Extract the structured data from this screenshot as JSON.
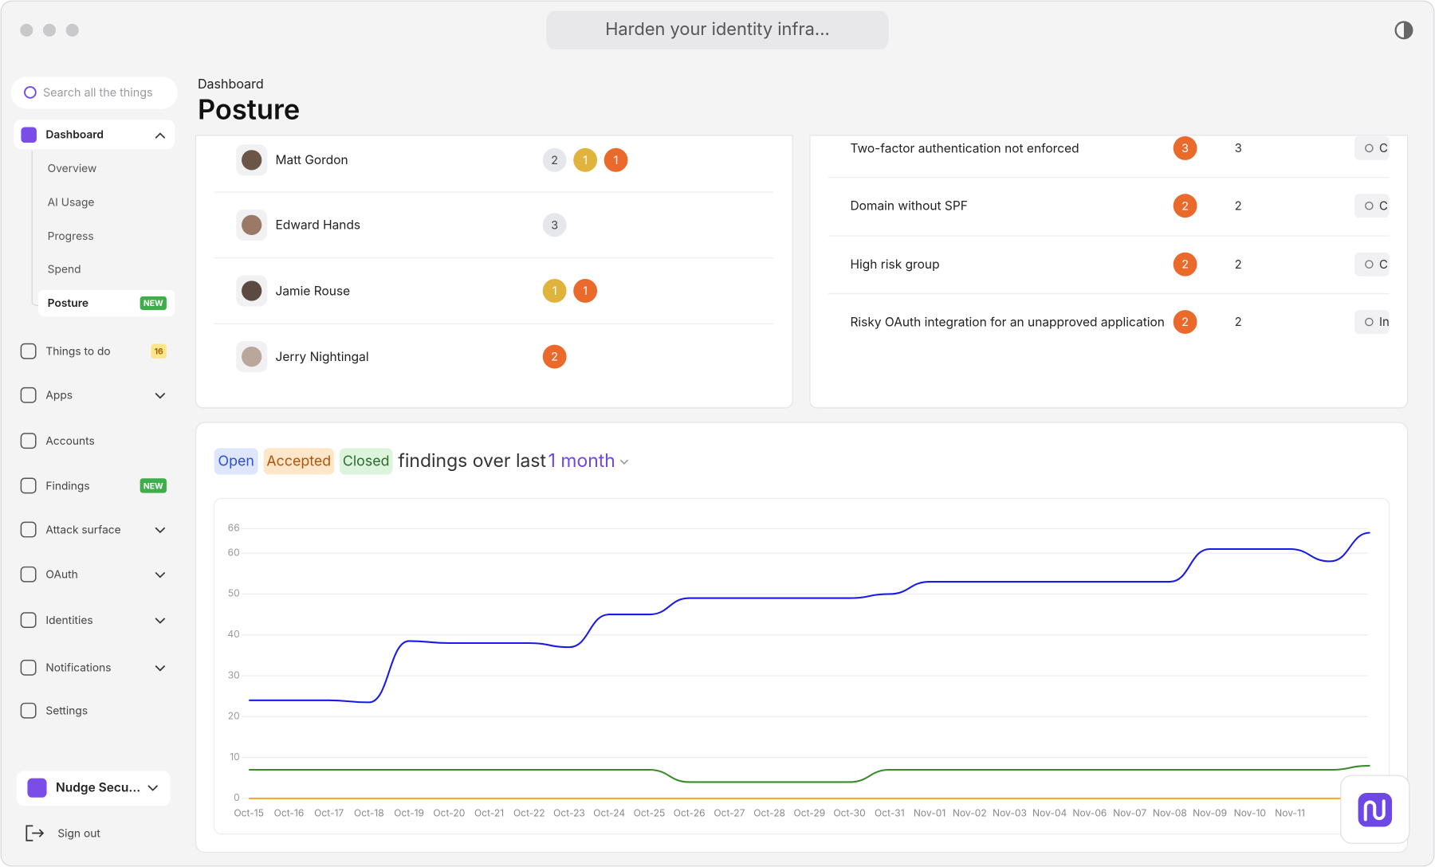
{
  "window": {
    "title": "Harden your identity infra..."
  },
  "sidebar": {
    "search": "Search all the things",
    "dashboard": {
      "label": "Dashboard",
      "items": [
        {
          "label": "Overview"
        },
        {
          "label": "AI Usage"
        },
        {
          "label": "Progress"
        },
        {
          "label": "Spend"
        },
        {
          "label": "Posture",
          "badge": "NEW"
        }
      ]
    },
    "nav": [
      {
        "label": "Things to do",
        "badge": "16"
      },
      {
        "label": "Apps",
        "chevron": true
      },
      {
        "label": "Accounts"
      },
      {
        "label": "Findings",
        "badge": "NEW"
      },
      {
        "label": "Attack surface",
        "chevron": true
      },
      {
        "label": "OAuth",
        "chevron": true
      },
      {
        "label": "Identities",
        "chevron": true
      },
      {
        "label": "Notifications",
        "chevron": true
      },
      {
        "label": "Settings"
      }
    ],
    "org": "Nudge Secu...",
    "signout": "Sign out"
  },
  "header": {
    "breadcrumb": "Dashboard",
    "title": "Posture"
  },
  "people": [
    {
      "name": "Matt Gordon",
      "badges": [
        {
          "value": 2,
          "color": "#e6e7ec"
        },
        {
          "value": 1,
          "color": "#e0b43c"
        },
        {
          "value": 1,
          "color": "#ea6a2c"
        }
      ]
    },
    {
      "name": "Edward Hands",
      "badges": [
        {
          "value": 3,
          "color": "#e6e7ec"
        }
      ]
    },
    {
      "name": "Jamie Rouse",
      "badges": [
        {
          "value": 1,
          "color": "#e0b43c"
        },
        {
          "value": 1,
          "color": "#ea6a2c"
        }
      ]
    },
    {
      "name": "Jerry Nightingal",
      "badges": [
        {
          "value": 2,
          "color": "#ea6a2c"
        }
      ]
    }
  ],
  "findings": [
    {
      "title": "Two-factor authentication not enforced",
      "severity": 3,
      "count": 3,
      "action": "C"
    },
    {
      "title": "Domain without SPF",
      "severity": 2,
      "count": 2,
      "action": "C"
    },
    {
      "title": "High risk group",
      "severity": 2,
      "count": 2,
      "action": "C"
    },
    {
      "title": "Risky OAuth integration for an unapproved application",
      "severity": 2,
      "count": 2,
      "action": "In"
    }
  ],
  "chart": {
    "type": "line",
    "title": "findings over last",
    "period": "1 month",
    "categories": [
      "Oct-15",
      "Oct-16",
      "Oct-17",
      "Oct-18",
      "Oct-19",
      "Oct-20",
      "Oct-21",
      "Oct-22",
      "Oct-23",
      "Oct-24",
      "Oct-25",
      "Oct-26",
      "Oct-27",
      "Oct-28",
      "Oct-29",
      "Oct-30",
      "Oct-31",
      "Nov-01",
      "Nov-02",
      "Nov-03",
      "Nov-04",
      "Nov-06",
      "Nov-07",
      "Nov-08",
      "Nov-09",
      "Nov-10",
      "Nov-11",
      null,
      null
    ],
    "series": [
      {
        "name": "Open",
        "color": "#1a1ae6",
        "chip": "#dfe6fb",
        "text": "#2a4fd6",
        "values": [
          24,
          24,
          24,
          23.5,
          38.5,
          38,
          38,
          38,
          37,
          45,
          45,
          49,
          49,
          49,
          49,
          49,
          50,
          53,
          53,
          53,
          53,
          53,
          53,
          53,
          61,
          61,
          61,
          58,
          65
        ]
      },
      {
        "name": "Accepted",
        "color": "#f2a93b",
        "chip": "#fde7c8",
        "text": "#b4530a",
        "values": [
          0,
          0,
          0,
          0,
          0,
          0,
          0,
          0,
          0,
          0,
          0,
          0,
          0,
          0,
          0,
          0,
          0,
          0,
          0,
          0,
          0,
          0,
          0,
          0,
          0,
          0,
          0,
          0,
          0
        ]
      },
      {
        "name": "Closed",
        "color": "#3a8a2a",
        "chip": "#dcf3dc",
        "text": "#2f6b2f",
        "values": [
          7,
          7,
          7,
          7,
          7,
          7,
          7,
          7,
          7,
          7,
          7,
          4,
          4,
          4,
          4,
          4,
          7,
          7,
          7,
          7,
          7,
          7,
          7,
          7,
          7,
          7,
          7,
          7,
          8
        ]
      }
    ],
    "ylim": [
      0,
      66
    ],
    "yticks": [
      0,
      10,
      20,
      30,
      40,
      50,
      60,
      66
    ],
    "grid": true
  }
}
